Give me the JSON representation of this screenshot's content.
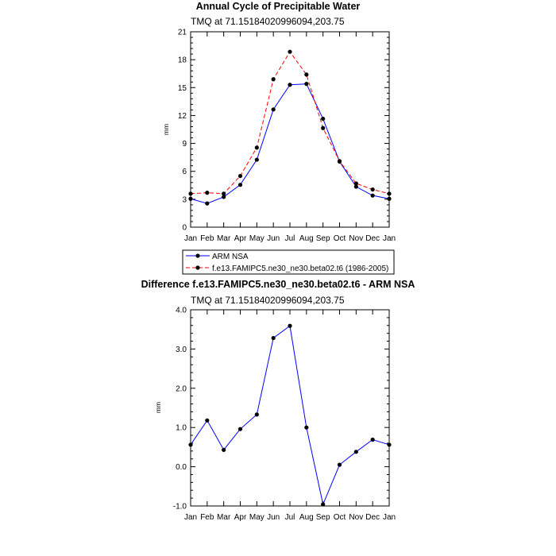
{
  "chart_data": [
    {
      "type": "line",
      "title": "Annual Cycle of Precipitable Water",
      "subtitle": "TMQ at 71.15184020996094,203.75",
      "xlabel": "",
      "ylabel": "mm",
      "categories": [
        "Jan",
        "Feb",
        "Mar",
        "Apr",
        "May",
        "Jun",
        "Jul",
        "Aug",
        "Sep",
        "Oct",
        "Nov",
        "Dec",
        "Jan"
      ],
      "ylim": [
        0,
        21
      ],
      "yticks": [
        "0",
        "3",
        "6",
        "9",
        "12",
        "15",
        "18",
        "21"
      ],
      "legend_position": "bottom",
      "series": [
        {
          "name": "ARM NSA",
          "color": "#0000ff",
          "dash": "solid",
          "values": [
            3.05,
            2.55,
            3.25,
            4.55,
            7.25,
            12.65,
            15.3,
            15.4,
            11.65,
            7.05,
            4.35,
            3.4,
            3.05
          ]
        },
        {
          "name": "f.e13.FAMIPC5.ne30_ne30.beta02.t6 (1986-2005)",
          "color": "#ff0000",
          "dash": "dashed",
          "values": [
            3.6,
            3.7,
            3.6,
            5.5,
            8.55,
            15.9,
            18.85,
            16.4,
            10.65,
            7.1,
            4.7,
            4.05,
            3.6
          ]
        }
      ]
    },
    {
      "type": "line",
      "title": "Difference f.e13.FAMIPC5.ne30_ne30.beta02.t6 - ARM NSA",
      "subtitle": "TMQ at 71.15184020996094,203.75",
      "xlabel": "",
      "ylabel": "mm",
      "categories": [
        "Jan",
        "Feb",
        "Mar",
        "Apr",
        "May",
        "Jun",
        "Jul",
        "Aug",
        "Sep",
        "Oct",
        "Nov",
        "Dec",
        "Jan"
      ],
      "ylim": [
        -1.0,
        4.0
      ],
      "yticks": [
        "-1.0",
        "0.0",
        "1.0",
        "2.0",
        "3.0",
        "4.0"
      ],
      "series": [
        {
          "name": "",
          "color": "#0000ff",
          "dash": "solid",
          "values": [
            0.56,
            1.18,
            0.43,
            0.96,
            1.33,
            3.28,
            3.59,
            1.0,
            -0.96,
            0.05,
            0.38,
            0.69,
            0.56
          ]
        }
      ]
    }
  ]
}
